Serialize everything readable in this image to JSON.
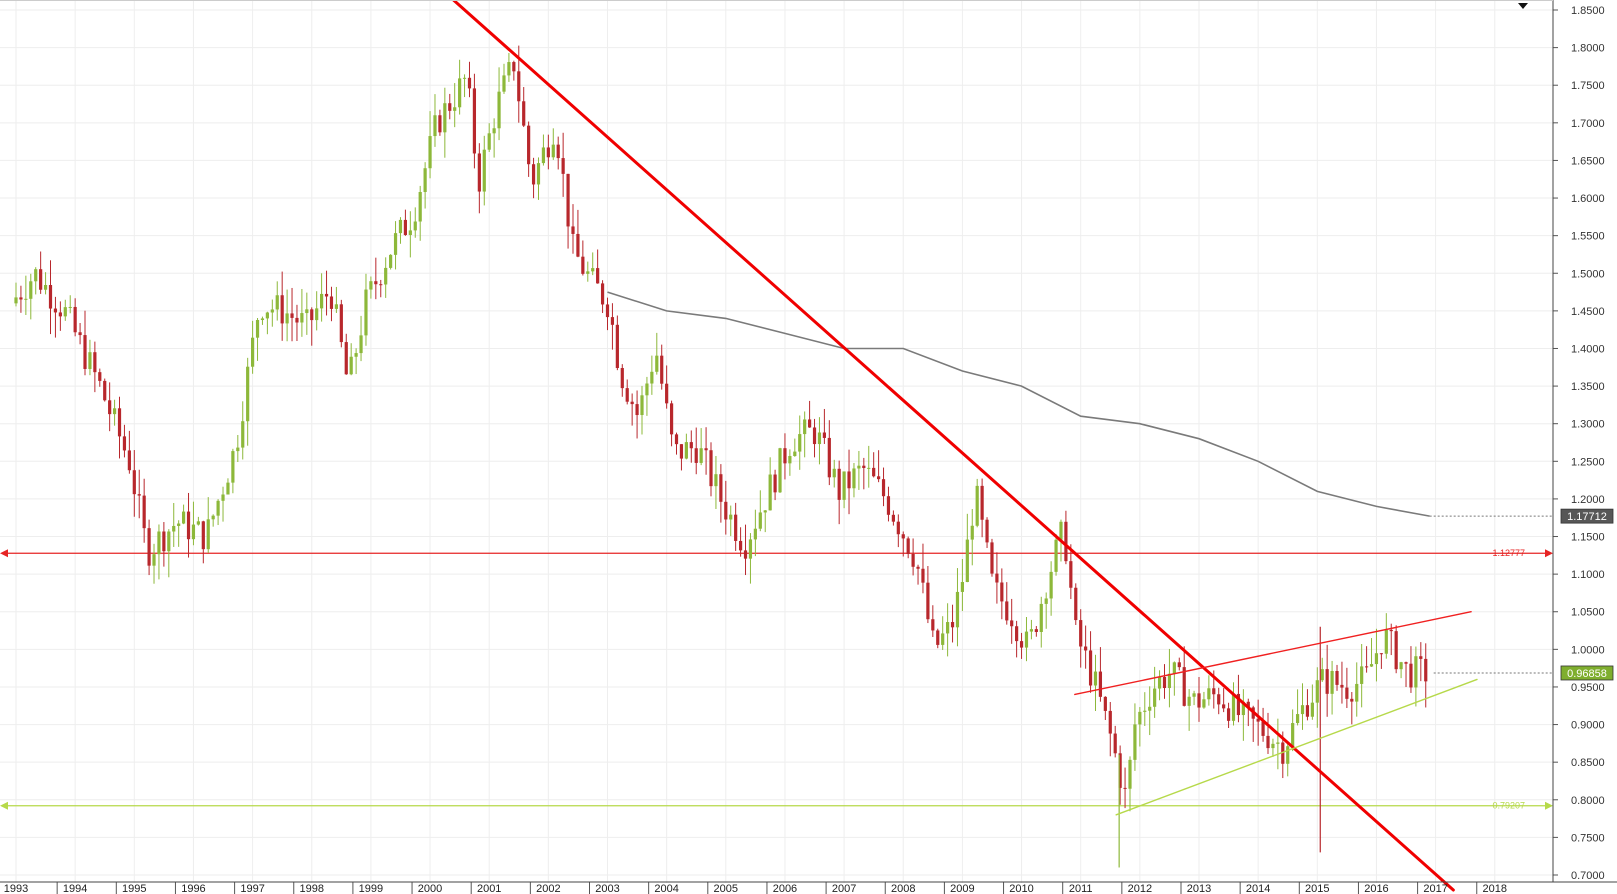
{
  "chart_data": {
    "type": "candlestick",
    "title": "",
    "xlabel": "",
    "ylabel": "",
    "ylim": [
      0.68,
      1.86
    ],
    "xlim": [
      1993.0,
      2019.0
    ],
    "y_ticks": [
      "0.7000",
      "0.7500",
      "0.8000",
      "0.8500",
      "0.9000",
      "0.9500",
      "1.0000",
      "1.0500",
      "1.1000",
      "1.1500",
      "1.2000",
      "1.2500",
      "1.3000",
      "1.3500",
      "1.4000",
      "1.4500",
      "1.5000",
      "1.5500",
      "1.6000",
      "1.6500",
      "1.7000",
      "1.7500",
      "1.8000",
      "1.8500"
    ],
    "x_ticks": [
      "1993",
      "1994",
      "1995",
      "1996",
      "1997",
      "1998",
      "1999",
      "2000",
      "2001",
      "2002",
      "2003",
      "2004",
      "2005",
      "2006",
      "2007",
      "2008",
      "2009",
      "2010",
      "2011",
      "2012",
      "2013",
      "2014",
      "2015",
      "2016",
      "2017",
      "2018"
    ],
    "grid": true,
    "colors": {
      "up_candle": "#8db83a",
      "down_candle": "#b8272c",
      "moving_average": "#7a7a7a",
      "trend_down": "#f00000",
      "trend_up": "#b6d94a",
      "grid": "#eeeeee"
    },
    "price_path_anchors": [
      {
        "x": 1993.0,
        "y": 1.46
      },
      {
        "x": 1993.4,
        "y": 1.5
      },
      {
        "x": 1993.9,
        "y": 1.45
      },
      {
        "x": 1994.5,
        "y": 1.35
      },
      {
        "x": 1995.0,
        "y": 1.25
      },
      {
        "x": 1995.3,
        "y": 1.13
      },
      {
        "x": 1995.8,
        "y": 1.17
      },
      {
        "x": 1996.3,
        "y": 1.15
      },
      {
        "x": 1996.8,
        "y": 1.27
      },
      {
        "x": 1997.2,
        "y": 1.46
      },
      {
        "x": 1997.6,
        "y": 1.45
      },
      {
        "x": 1998.0,
        "y": 1.43
      },
      {
        "x": 1998.4,
        "y": 1.48
      },
      {
        "x": 1998.7,
        "y": 1.35
      },
      {
        "x": 1999.0,
        "y": 1.46
      },
      {
        "x": 1999.4,
        "y": 1.53
      },
      {
        "x": 1999.8,
        "y": 1.58
      },
      {
        "x": 2000.2,
        "y": 1.7
      },
      {
        "x": 2000.7,
        "y": 1.76
      },
      {
        "x": 2000.9,
        "y": 1.62
      },
      {
        "x": 2001.2,
        "y": 1.72
      },
      {
        "x": 2001.5,
        "y": 1.78
      },
      {
        "x": 2001.8,
        "y": 1.62
      },
      {
        "x": 2002.2,
        "y": 1.7
      },
      {
        "x": 2002.5,
        "y": 1.53
      },
      {
        "x": 2002.8,
        "y": 1.49
      },
      {
        "x": 2003.1,
        "y": 1.46
      },
      {
        "x": 2003.3,
        "y": 1.37
      },
      {
        "x": 2003.6,
        "y": 1.31
      },
      {
        "x": 2003.9,
        "y": 1.4
      },
      {
        "x": 2004.2,
        "y": 1.26
      },
      {
        "x": 2004.6,
        "y": 1.27
      },
      {
        "x": 2005.0,
        "y": 1.2
      },
      {
        "x": 2005.4,
        "y": 1.14
      },
      {
        "x": 2005.8,
        "y": 1.21
      },
      {
        "x": 2006.2,
        "y": 1.28
      },
      {
        "x": 2006.6,
        "y": 1.29
      },
      {
        "x": 2007.0,
        "y": 1.21
      },
      {
        "x": 2007.4,
        "y": 1.24
      },
      {
        "x": 2007.8,
        "y": 1.2
      },
      {
        "x": 2008.3,
        "y": 1.12
      },
      {
        "x": 2008.6,
        "y": 1.0
      },
      {
        "x": 2008.9,
        "y": 1.03
      },
      {
        "x": 2009.1,
        "y": 1.1
      },
      {
        "x": 2009.3,
        "y": 1.21
      },
      {
        "x": 2009.6,
        "y": 1.08
      },
      {
        "x": 2009.9,
        "y": 1.05
      },
      {
        "x": 2010.2,
        "y": 1.0
      },
      {
        "x": 2010.5,
        "y": 1.09
      },
      {
        "x": 2010.8,
        "y": 1.16
      },
      {
        "x": 2011.0,
        "y": 1.02
      },
      {
        "x": 2011.3,
        "y": 0.96
      },
      {
        "x": 2011.6,
        "y": 0.88
      },
      {
        "x": 2011.85,
        "y": 0.8
      },
      {
        "x": 2012.0,
        "y": 0.9
      },
      {
        "x": 2012.3,
        "y": 0.95
      },
      {
        "x": 2012.6,
        "y": 0.97
      },
      {
        "x": 2013.0,
        "y": 0.93
      },
      {
        "x": 2013.4,
        "y": 0.94
      },
      {
        "x": 2013.8,
        "y": 0.91
      },
      {
        "x": 2014.2,
        "y": 0.89
      },
      {
        "x": 2014.5,
        "y": 0.87
      },
      {
        "x": 2014.9,
        "y": 0.93
      },
      {
        "x": 2015.2,
        "y": 0.96
      },
      {
        "x": 2015.6,
        "y": 0.95
      },
      {
        "x": 2015.9,
        "y": 0.96
      },
      {
        "x": 2016.2,
        "y": 1.02
      },
      {
        "x": 2016.6,
        "y": 0.97
      },
      {
        "x": 2016.9,
        "y": 0.96858
      }
    ],
    "moving_average": [
      {
        "x": 2003.0,
        "y": 1.475
      },
      {
        "x": 2004.0,
        "y": 1.45
      },
      {
        "x": 2005.0,
        "y": 1.44
      },
      {
        "x": 2006.0,
        "y": 1.42
      },
      {
        "x": 2007.0,
        "y": 1.4
      },
      {
        "x": 2008.0,
        "y": 1.4
      },
      {
        "x": 2009.0,
        "y": 1.37
      },
      {
        "x": 2010.0,
        "y": 1.35
      },
      {
        "x": 2011.0,
        "y": 1.31
      },
      {
        "x": 2012.0,
        "y": 1.3
      },
      {
        "x": 2013.0,
        "y": 1.28
      },
      {
        "x": 2014.0,
        "y": 1.25
      },
      {
        "x": 2015.0,
        "y": 1.21
      },
      {
        "x": 2016.0,
        "y": 1.19
      },
      {
        "x": 2016.9,
        "y": 1.17712
      }
    ],
    "trendlines": [
      {
        "name": "downtrend",
        "color": "#f00000",
        "from": {
          "x": 2000.3,
          "y": 1.87
        },
        "to": {
          "x": 2017.3,
          "y": 0.68
        }
      },
      {
        "name": "channel-top",
        "color": "#f02020",
        "from": {
          "x": 2010.9,
          "y": 0.94
        },
        "to": {
          "x": 2017.6,
          "y": 1.05
        }
      },
      {
        "name": "channel-bottom",
        "color": "#b6d94a",
        "from": {
          "x": 2011.6,
          "y": 0.78
        },
        "to": {
          "x": 2017.7,
          "y": 0.96
        }
      }
    ],
    "horizontal_lines": [
      {
        "name": "resistance",
        "value": 1.12777,
        "label": "1.12777",
        "color": "#e62424"
      },
      {
        "name": "support",
        "value": 0.79207,
        "label": "0.79207",
        "color": "#b6d94a"
      }
    ],
    "price_badges": [
      {
        "name": "moving-average-value",
        "label": "1.17712",
        "value": 1.17712,
        "bg": "#575757",
        "fg": "#ffffff"
      },
      {
        "name": "last-price",
        "label": "0.96858",
        "value": 0.96858,
        "bg": "#7fae2e",
        "fg": "#ffffff"
      }
    ]
  }
}
